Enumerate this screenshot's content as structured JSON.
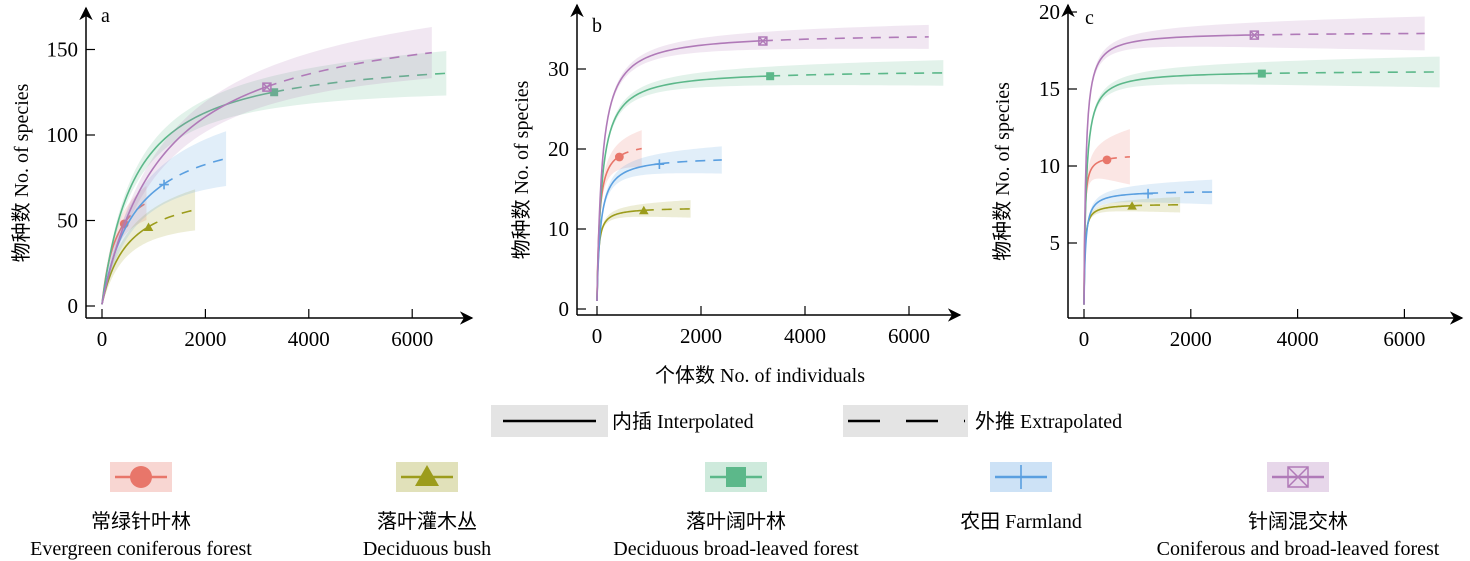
{
  "chart_data": {
    "type": "line",
    "xlabel": "个体数 No. of individuals",
    "ylabel": "物种数 No. of species",
    "line_legend": {
      "interpolated": "内插 Interpolated",
      "extrapolated": "外推 Extrapolated"
    },
    "series_meta": [
      {
        "key": "evergreen",
        "name_cn": "常绿针叶林",
        "name_en": "Evergreen coniferous forest",
        "color": "#e8766a",
        "marker": "circle"
      },
      {
        "key": "bush",
        "name_cn": "落叶灌木丛",
        "name_en": "Deciduous bush",
        "color": "#9c9c1c",
        "marker": "triangle"
      },
      {
        "key": "broadleaf",
        "name_cn": "落叶阔叶林",
        "name_en": "Deciduous broad-leaved forest",
        "color": "#5cb88a",
        "marker": "square"
      },
      {
        "key": "farmland",
        "name_cn": "农田 Farmland",
        "name_en": "",
        "color": "#5a9fe0",
        "marker": "plus"
      },
      {
        "key": "mixed",
        "name_cn": "针阔混交林",
        "name_en": "Coniferous and broad-leaved forest",
        "color": "#b07ab8",
        "marker": "boxx"
      }
    ],
    "panels": [
      {
        "label": "a",
        "xlim": [
          0,
          6800
        ],
        "ylim": [
          0,
          170
        ],
        "xticks": [
          "0",
          "2000",
          "4000",
          "6000"
        ],
        "yticks": [
          "0",
          "50",
          "100",
          "150"
        ],
        "series": [
          {
            "key": "evergreen",
            "n": 430,
            "observed": 48,
            "x_ext": 860,
            "extrapolated": 60,
            "ci_halfwidth": 10
          },
          {
            "key": "bush",
            "n": 900,
            "observed": 46,
            "x_ext": 1800,
            "extrapolated": 56,
            "ci_halfwidth": 12
          },
          {
            "key": "broadleaf",
            "n": 3330,
            "observed": 125,
            "x_ext": 6660,
            "extrapolated": 136,
            "ci_halfwidth": 13
          },
          {
            "key": "farmland",
            "n": 1200,
            "observed": 71,
            "x_ext": 2400,
            "extrapolated": 86,
            "ci_halfwidth": 16
          },
          {
            "key": "mixed",
            "n": 3190,
            "observed": 128,
            "x_ext": 6380,
            "extrapolated": 148,
            "ci_halfwidth": 15
          }
        ]
      },
      {
        "label": "b",
        "xlim": [
          0,
          6800
        ],
        "ylim": [
          0,
          37
        ],
        "xticks": [
          "0",
          "2000",
          "4000",
          "6000"
        ],
        "yticks": [
          "0",
          "10",
          "20",
          "30"
        ],
        "series": [
          {
            "key": "evergreen",
            "n": 430,
            "observed": 19,
            "x_ext": 860,
            "extrapolated": 20,
            "ci_halfwidth": 2.3
          },
          {
            "key": "bush",
            "n": 900,
            "observed": 12.3,
            "x_ext": 1800,
            "extrapolated": 12.5,
            "ci_halfwidth": 1.1
          },
          {
            "key": "broadleaf",
            "n": 3330,
            "observed": 29.1,
            "x_ext": 6660,
            "extrapolated": 29.5,
            "ci_halfwidth": 1.6
          },
          {
            "key": "farmland",
            "n": 1200,
            "observed": 18.1,
            "x_ext": 2400,
            "extrapolated": 18.6,
            "ci_halfwidth": 1.7
          },
          {
            "key": "mixed",
            "n": 3190,
            "observed": 33.5,
            "x_ext": 6380,
            "extrapolated": 34,
            "ci_halfwidth": 1.5
          }
        ]
      },
      {
        "label": "c",
        "xlim": [
          0,
          6800
        ],
        "ylim": [
          0,
          20
        ],
        "xticks": [
          "0",
          "2000",
          "4000",
          "6000"
        ],
        "yticks": [
          "5",
          "10",
          "15",
          "20"
        ],
        "series": [
          {
            "key": "evergreen",
            "n": 430,
            "observed": 10.4,
            "x_ext": 860,
            "extrapolated": 10.5,
            "ci_halfwidth": 1.8
          },
          {
            "key": "bush",
            "n": 900,
            "observed": 7.4,
            "x_ext": 1800,
            "extrapolated": 7.4,
            "ci_halfwidth": 0.5
          },
          {
            "key": "broadleaf",
            "n": 3330,
            "observed": 16,
            "x_ext": 6660,
            "extrapolated": 16.1,
            "ci_halfwidth": 1.0
          },
          {
            "key": "farmland",
            "n": 1200,
            "observed": 8.2,
            "x_ext": 2400,
            "extrapolated": 8.3,
            "ci_halfwidth": 0.8
          },
          {
            "key": "mixed",
            "n": 3190,
            "observed": 18.5,
            "x_ext": 6380,
            "extrapolated": 18.6,
            "ci_halfwidth": 1.1
          }
        ]
      }
    ]
  }
}
